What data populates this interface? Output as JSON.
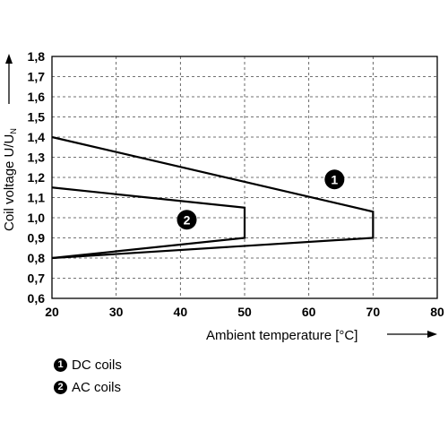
{
  "chart_data": {
    "type": "line",
    "xlabel": "Ambient temperature [°C]",
    "ylabel_main": "Coil voltage U/U",
    "ylabel_sub": "N",
    "xlim": [
      20,
      80
    ],
    "ylim": [
      0.6,
      1.8
    ],
    "x_ticks": [
      "20",
      "30",
      "40",
      "50",
      "60",
      "70",
      "80"
    ],
    "y_ticks": [
      "0,6",
      "0,7",
      "0,8",
      "0,9",
      "1,0",
      "1,1",
      "1,2",
      "1,3",
      "1,4",
      "1,5",
      "1,6",
      "1,7",
      "1,8"
    ],
    "x_tick_values": [
      20,
      30,
      40,
      50,
      60,
      70,
      80
    ],
    "y_tick_values": [
      0.6,
      0.7,
      0.8,
      0.9,
      1.0,
      1.1,
      1.2,
      1.3,
      1.4,
      1.5,
      1.6,
      1.7,
      1.8
    ],
    "grid": true,
    "series": [
      {
        "marker": "1",
        "x": [
          20,
          70,
          70,
          20
        ],
        "y": [
          1.4,
          1.03,
          0.9,
          0.8
        ],
        "marker_pos": [
          64,
          1.19
        ]
      },
      {
        "marker": "2",
        "x": [
          20,
          50,
          50,
          20
        ],
        "y": [
          1.15,
          1.05,
          0.9,
          0.8
        ],
        "marker_pos": [
          41,
          0.99
        ]
      }
    ]
  },
  "legend": [
    {
      "marker": "1",
      "label": "DC coils"
    },
    {
      "marker": "2",
      "label": "AC coils"
    }
  ]
}
